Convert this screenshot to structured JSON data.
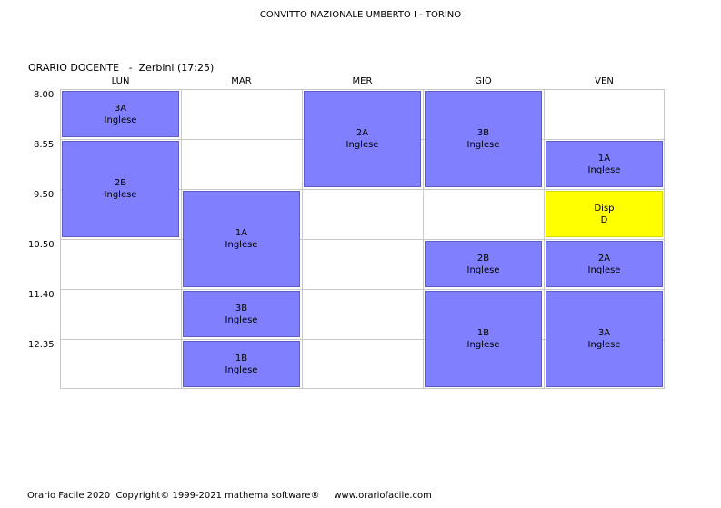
{
  "school": {
    "title": "CONVITTO NAZIONALE UMBERTO I - TORINO"
  },
  "timetable": {
    "label": "ORARIO DOCENTE",
    "separator": "-",
    "teacher": "Zerbini",
    "hours": "(17:25)"
  },
  "days": [
    "LUN",
    "MAR",
    "MER",
    "GIO",
    "VEN"
  ],
  "times": [
    "8.00",
    "8.55",
    "9.50",
    "10.50",
    "11.40",
    "12.35"
  ],
  "colors": {
    "lesson": "#8080ff",
    "availability": "#ffff00"
  },
  "lessons": [
    {
      "day": 0,
      "start": 0,
      "span": 1,
      "class": "3A",
      "subject": "Inglese",
      "kind": "lesson"
    },
    {
      "day": 0,
      "start": 1,
      "span": 2,
      "class": "2B",
      "subject": "Inglese",
      "kind": "lesson"
    },
    {
      "day": 1,
      "start": 2,
      "span": 2,
      "class": "1A",
      "subject": "Inglese",
      "kind": "lesson"
    },
    {
      "day": 1,
      "start": 4,
      "span": 1,
      "class": "3B",
      "subject": "Inglese",
      "kind": "lesson"
    },
    {
      "day": 1,
      "start": 5,
      "span": 1,
      "class": "1B",
      "subject": "Inglese",
      "kind": "lesson"
    },
    {
      "day": 2,
      "start": 0,
      "span": 2,
      "class": "2A",
      "subject": "Inglese",
      "kind": "lesson"
    },
    {
      "day": 3,
      "start": 0,
      "span": 2,
      "class": "3B",
      "subject": "Inglese",
      "kind": "lesson"
    },
    {
      "day": 3,
      "start": 3,
      "span": 1,
      "class": "2B",
      "subject": "Inglese",
      "kind": "lesson"
    },
    {
      "day": 3,
      "start": 4,
      "span": 2,
      "class": "1B",
      "subject": "Inglese",
      "kind": "lesson"
    },
    {
      "day": 4,
      "start": 1,
      "span": 1,
      "class": "1A",
      "subject": "Inglese",
      "kind": "lesson"
    },
    {
      "day": 4,
      "start": 2,
      "span": 1,
      "class": "Disp",
      "subject": "D",
      "kind": "availability"
    },
    {
      "day": 4,
      "start": 3,
      "span": 1,
      "class": "2A",
      "subject": "Inglese",
      "kind": "lesson"
    },
    {
      "day": 4,
      "start": 4,
      "span": 2,
      "class": "3A",
      "subject": "Inglese",
      "kind": "lesson"
    }
  ],
  "footer": {
    "product": "Orario Facile 2020",
    "copyright": "Copyright© 1999-2021 mathema software®",
    "website": "www.orariofacile.com"
  }
}
